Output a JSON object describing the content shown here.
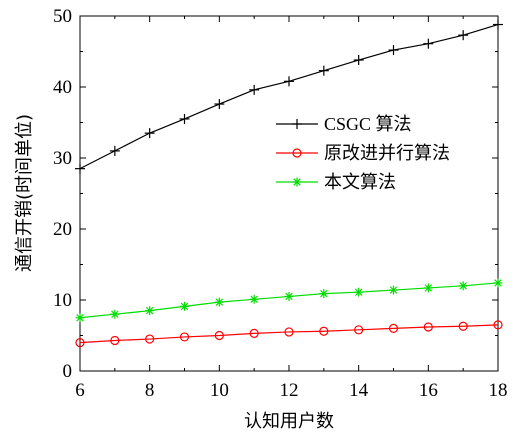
{
  "chart_data": {
    "type": "line",
    "xlabel": "认知用户数",
    "ylabel": "通信开销(时间单位)",
    "xlim": [
      6,
      18
    ],
    "ylim": [
      0,
      50
    ],
    "x_ticks": [
      6,
      8,
      10,
      12,
      14,
      16,
      18
    ],
    "y_ticks": [
      0,
      10,
      20,
      30,
      40,
      50
    ],
    "grid": false,
    "legend_position": "center-right",
    "x": [
      6,
      7,
      8,
      9,
      10,
      11,
      12,
      13,
      14,
      15,
      16,
      17,
      18
    ],
    "series": [
      {
        "name": "CSGC 算法",
        "color": "#000000",
        "marker": "plus",
        "values": [
          28.5,
          31.0,
          33.5,
          35.5,
          37.6,
          39.6,
          40.8,
          42.3,
          43.8,
          45.2,
          46.1,
          47.3,
          48.8
        ]
      },
      {
        "name": "原改进并行算法",
        "color": "#ff0000",
        "marker": "circle",
        "values": [
          4.0,
          4.3,
          4.5,
          4.8,
          5.0,
          5.3,
          5.5,
          5.6,
          5.8,
          6.0,
          6.2,
          6.3,
          6.5
        ]
      },
      {
        "name": "本文算法",
        "color": "#00dd00",
        "marker": "star",
        "values": [
          7.5,
          8.0,
          8.5,
          9.1,
          9.7,
          10.1,
          10.5,
          10.9,
          11.1,
          11.4,
          11.7,
          12.0,
          12.4
        ]
      }
    ]
  }
}
